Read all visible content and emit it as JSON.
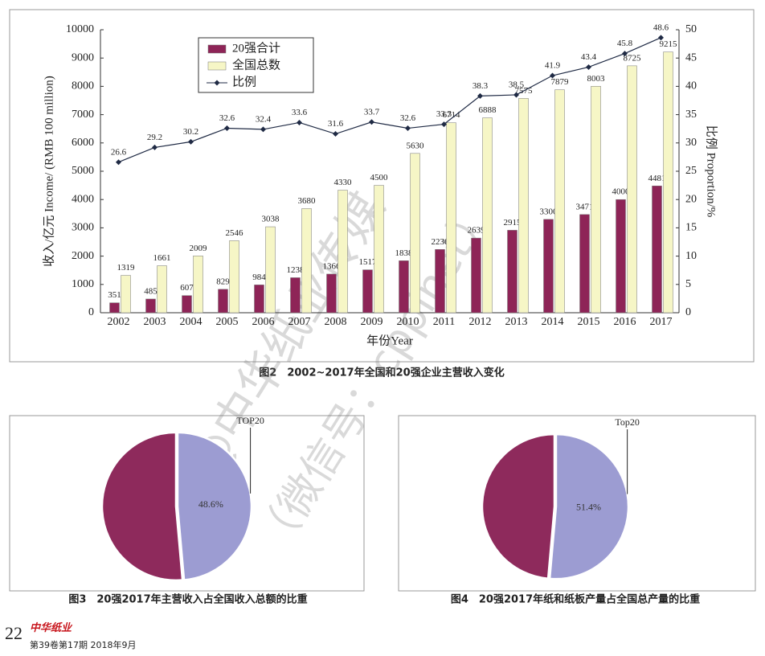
{
  "chart_data": [
    {
      "type": "bar",
      "categories": [
        "2002",
        "2003",
        "2004",
        "2005",
        "2006",
        "2007",
        "2008",
        "2009",
        "2010",
        "2011",
        "2012",
        "2013",
        "2014",
        "2015",
        "2016",
        "2017"
      ],
      "series": [
        {
          "name": "20强合计",
          "type": "bar",
          "color": "#8e2457",
          "values": [
            351,
            485,
            607,
            829,
            984,
            1238,
            1366,
            1517,
            1838,
            2236,
            2639,
            2915,
            3300,
            3471,
            4000,
            4481
          ]
        },
        {
          "name": "全国总数",
          "type": "bar",
          "color": "#f6f6c6",
          "values": [
            1319,
            1661,
            2009,
            2546,
            3038,
            3680,
            4330,
            4500,
            5630,
            6714,
            6888,
            7575,
            7879,
            8003,
            8725,
            9215
          ]
        },
        {
          "name": "比例",
          "type": "line",
          "axis": "y2",
          "color": "#1f2a44",
          "values": [
            26.6,
            29.2,
            30.2,
            32.6,
            32.4,
            33.6,
            31.6,
            33.7,
            32.6,
            33.3,
            38.3,
            38.5,
            41.9,
            43.4,
            45.8,
            48.6
          ]
        }
      ],
      "ylim": [
        0,
        10000
      ],
      "yticks": [
        0,
        1000,
        2000,
        3000,
        4000,
        5000,
        6000,
        7000,
        8000,
        9000,
        10000
      ],
      "y2lim": [
        0,
        50
      ],
      "y2ticks": [
        0,
        5,
        10,
        15,
        20,
        25,
        30,
        35,
        40,
        45,
        50
      ],
      "ylabel": "收入/亿元 Income/ (RMB 100 million)",
      "y2label": "比例 Proportion/%",
      "xlabel": "年份Year",
      "legend": "upper-left",
      "caption": "图2　2002~2017年全国和20强企业主营收入变化"
    },
    {
      "type": "pie",
      "categories": [
        "TOP20",
        null
      ],
      "values": [
        48.6,
        51.4
      ],
      "value_labels": [
        "48.6%",
        null
      ],
      "colors": [
        "#9c9cd2",
        "#8e2a5c"
      ],
      "caption": "图3　20强2017年主营收入占全国收入总额的比重"
    },
    {
      "type": "pie",
      "categories": [
        "Top20",
        null
      ],
      "values": [
        51.4,
        48.6
      ],
      "value_labels": [
        "51.4%",
        null
      ],
      "colors": [
        "#9c9cd2",
        "#8e2a5c"
      ],
      "caption": "图4　20强2017年纸和纸板产量占全国总产量的比重"
    }
  ],
  "page_number": "22",
  "journal": "中华纸业",
  "issue": "第39卷第17期  2018年9月",
  "watermark": [
    "@中华纸业传媒",
    "（微信号：cppinet）"
  ]
}
